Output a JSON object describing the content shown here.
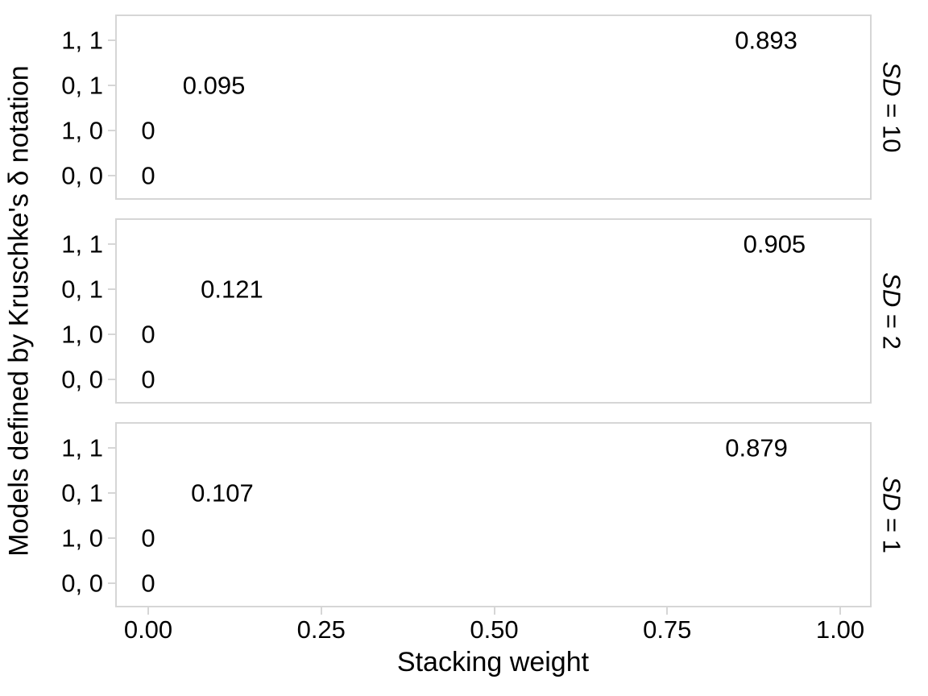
{
  "chart_data": {
    "type": "scatter",
    "mark": "text-labels",
    "title": "",
    "xlabel": "Stacking weight",
    "ylabel": "Models defined by Kruschke's δ notation",
    "x_ticks": [
      "0.00",
      "0.25",
      "0.50",
      "0.75",
      "1.00"
    ],
    "x_tick_values": [
      0,
      0.25,
      0.5,
      0.75,
      1
    ],
    "xlim": [
      0,
      1
    ],
    "y_categories": [
      "1, 1",
      "0, 1",
      "1, 0",
      "0, 0"
    ],
    "facet_variable": "SD",
    "grid": "off",
    "legend": "none",
    "panels": [
      {
        "strip_label": "SD = 10",
        "strip_prefix": "SD",
        "strip_suffix": " = 10",
        "points": [
          {
            "y": "1, 1",
            "x": 0.893,
            "label": "0.893"
          },
          {
            "y": "0, 1",
            "x": 0.095,
            "label": "0.095"
          },
          {
            "y": "1, 0",
            "x": 0,
            "label": "0"
          },
          {
            "y": "0, 0",
            "x": 0,
            "label": "0"
          }
        ]
      },
      {
        "strip_label": "SD = 2",
        "strip_prefix": "SD",
        "strip_suffix": " = 2",
        "points": [
          {
            "y": "1, 1",
            "x": 0.905,
            "label": "0.905"
          },
          {
            "y": "0, 1",
            "x": 0.121,
            "label": "0.121"
          },
          {
            "y": "1, 0",
            "x": 0,
            "label": "0"
          },
          {
            "y": "0, 0",
            "x": 0,
            "label": "0"
          }
        ]
      },
      {
        "strip_label": "SD = 1",
        "strip_prefix": "SD",
        "strip_suffix": " = 1",
        "points": [
          {
            "y": "1, 1",
            "x": 0.879,
            "label": "0.879"
          },
          {
            "y": "0, 1",
            "x": 0.107,
            "label": "0.107"
          },
          {
            "y": "1, 0",
            "x": 0,
            "label": "0"
          },
          {
            "y": "0, 0",
            "x": 0,
            "label": "0"
          }
        ]
      }
    ],
    "colors": {
      "text": "#000000",
      "panel_border": "#d6d6d6",
      "tick_mark": "#d6d6d6",
      "background": "#ffffff"
    }
  }
}
